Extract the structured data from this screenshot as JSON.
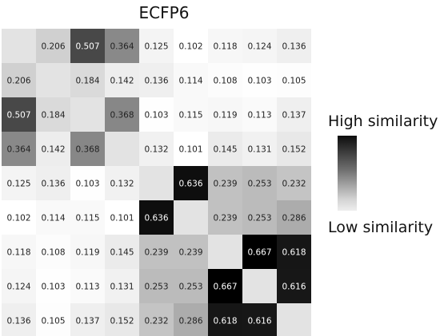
{
  "chart_data": {
    "type": "heatmap",
    "title": "ECFP6",
    "matrix": [
      [
        null,
        0.206,
        0.507,
        0.364,
        0.125,
        0.102,
        0.118,
        0.124,
        0.136
      ],
      [
        0.206,
        null,
        0.184,
        0.142,
        0.136,
        0.114,
        0.108,
        0.103,
        0.105
      ],
      [
        0.507,
        0.184,
        null,
        0.368,
        0.103,
        0.115,
        0.119,
        0.113,
        0.137
      ],
      [
        0.364,
        0.142,
        0.368,
        null,
        0.132,
        0.101,
        0.145,
        0.131,
        0.152
      ],
      [
        0.125,
        0.136,
        0.103,
        0.132,
        null,
        0.636,
        0.239,
        0.253,
        0.232
      ],
      [
        0.102,
        0.114,
        0.115,
        0.101,
        0.636,
        null,
        0.239,
        0.253,
        0.286
      ],
      [
        0.118,
        0.108,
        0.119,
        0.145,
        0.239,
        0.239,
        null,
        0.667,
        0.618
      ],
      [
        0.124,
        0.103,
        0.113,
        0.131,
        0.253,
        0.253,
        0.667,
        null,
        0.616
      ],
      [
        0.136,
        0.105,
        0.137,
        0.152,
        0.232,
        0.286,
        0.618,
        0.616,
        null
      ]
    ],
    "color_scale": {
      "low_color": "#ffffff",
      "high_color": "#000000"
    },
    "diagonal_color": "#e3e3e3",
    "legend": {
      "high_label": "High similarity",
      "low_label": "Low similarity",
      "position": "right"
    },
    "grid": false
  }
}
